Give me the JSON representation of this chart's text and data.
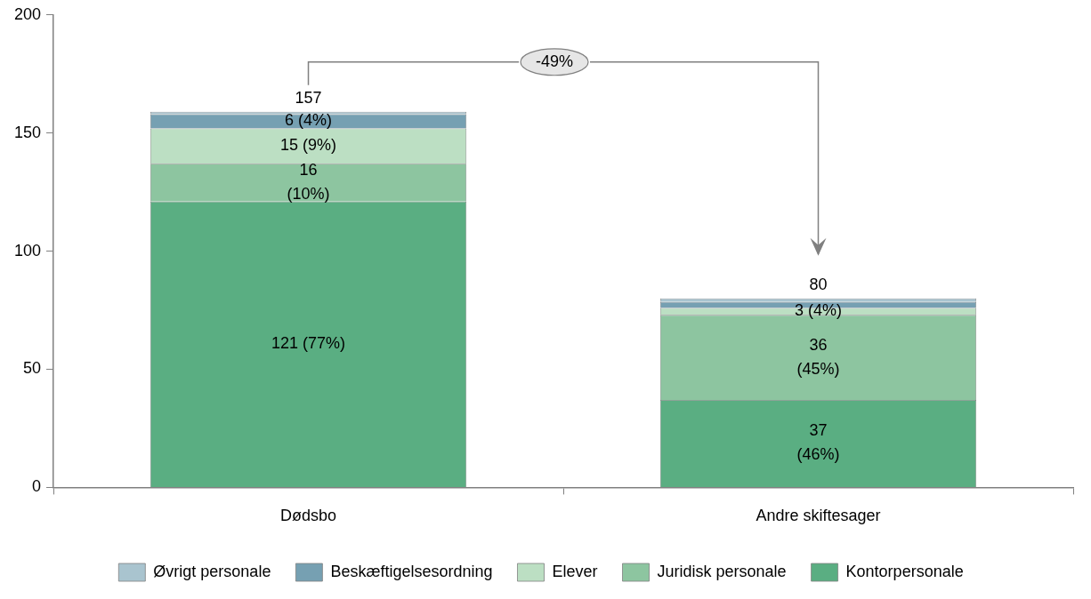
{
  "chart_data": {
    "type": "bar",
    "stacked": true,
    "categories": [
      "Dødsbo",
      "Andre skiftesager"
    ],
    "series": [
      {
        "name": "Kontorpersonale",
        "color": "#5aae82",
        "values": [
          121,
          37
        ],
        "value_labels": [
          "121 (77%)",
          "37\n(46%)"
        ]
      },
      {
        "name": "Juridisk personale",
        "color": "#8dc5a0",
        "values": [
          16,
          36
        ],
        "value_labels": [
          "16\n(10%)",
          "36\n(45%)"
        ]
      },
      {
        "name": "Elever",
        "color": "#bcdfc3",
        "values": [
          15,
          3
        ],
        "value_labels": [
          "15 (9%)",
          "3 (4%)"
        ]
      },
      {
        "name": "Beskæftigelsesordning",
        "color": "#76a0b2",
        "values": [
          6,
          2.5
        ],
        "value_labels": [
          "6 (4%)",
          null
        ]
      },
      {
        "name": "Øvrigt personale",
        "color": "#a9c4cf",
        "values": [
          1,
          1.5
        ],
        "value_labels": [
          null,
          null
        ]
      }
    ],
    "totals": [
      "157",
      "80"
    ],
    "annotations": [
      "-49%"
    ],
    "ylim": [
      0,
      200
    ],
    "yticks": [
      0,
      50,
      100,
      150,
      200
    ],
    "grid": false,
    "legend": "bottom"
  }
}
